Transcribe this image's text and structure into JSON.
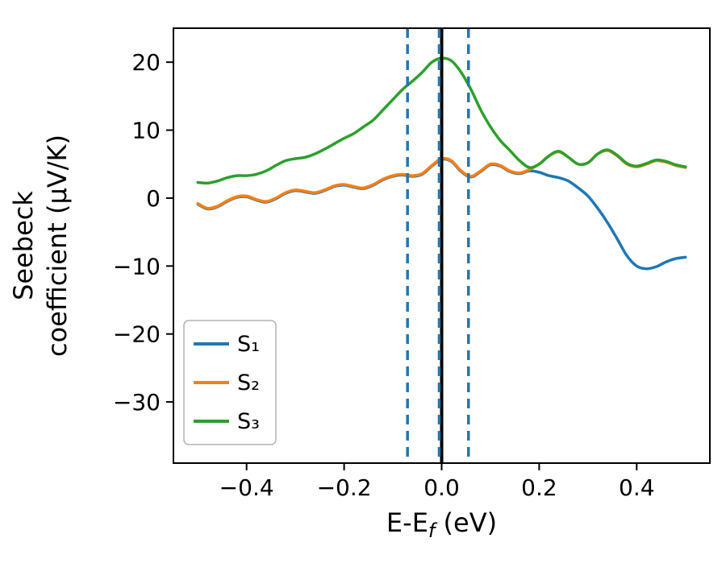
{
  "figure": {
    "background": "#ffffff",
    "axis_color": "#000000"
  },
  "chart_data": {
    "type": "line",
    "title": "",
    "xlabel_parts": {
      "pre": "E-E",
      "sub": "f",
      "post": " (eV)"
    },
    "ylabel_lines": [
      "Seebeck",
      "coefficient  (μV/K)"
    ],
    "xlim": [
      -0.55,
      0.55
    ],
    "ylim": [
      -39,
      25
    ],
    "grid": false,
    "legend_position": "lower left",
    "xticks": {
      "values": [
        -0.4,
        -0.2,
        0.0,
        0.2,
        0.4
      ],
      "labels": [
        "−0.4",
        "−0.2",
        "0.0",
        "0.2",
        "0.4"
      ]
    },
    "yticks": {
      "values": [
        -30,
        -20,
        -10,
        0,
        10,
        20
      ],
      "labels": [
        "−30",
        "−20",
        "−10",
        "0",
        "10",
        "20"
      ]
    },
    "x": [
      -0.5,
      -0.48,
      -0.46,
      -0.44,
      -0.42,
      -0.4,
      -0.38,
      -0.36,
      -0.34,
      -0.32,
      -0.3,
      -0.28,
      -0.26,
      -0.24,
      -0.22,
      -0.2,
      -0.18,
      -0.16,
      -0.14,
      -0.12,
      -0.1,
      -0.08,
      -0.06,
      -0.04,
      -0.02,
      0.0,
      0.02,
      0.04,
      0.06,
      0.08,
      0.1,
      0.12,
      0.14,
      0.16,
      0.18,
      0.2,
      0.22,
      0.24,
      0.26,
      0.28,
      0.3,
      0.32,
      0.34,
      0.36,
      0.38,
      0.4,
      0.42,
      0.44,
      0.46,
      0.48,
      0.5
    ],
    "series": [
      {
        "name": "S₁",
        "color": "#1f77b4",
        "values": [
          -0.9,
          -1.6,
          -1.3,
          -0.5,
          0.1,
          0.2,
          -0.3,
          -0.6,
          -0.1,
          0.7,
          1.1,
          0.9,
          0.7,
          1.1,
          1.7,
          1.9,
          1.6,
          1.4,
          1.9,
          2.7,
          3.2,
          3.4,
          3.2,
          3.5,
          4.7,
          5.7,
          5.4,
          3.9,
          3.1,
          3.9,
          4.9,
          4.7,
          3.9,
          3.6,
          4.0,
          3.8,
          3.3,
          3.0,
          2.5,
          1.5,
          0.3,
          -1.5,
          -3.6,
          -6.0,
          -8.5,
          -10.0,
          -10.4,
          -10.1,
          -9.4,
          -8.9,
          -8.7
        ]
      },
      {
        "name": "S₂",
        "color": "#ff7f0e",
        "values": [
          -0.8,
          -1.5,
          -1.2,
          -0.4,
          0.2,
          0.3,
          -0.2,
          -0.5,
          0.0,
          0.8,
          1.2,
          1.0,
          0.8,
          1.2,
          1.8,
          2.0,
          1.7,
          1.5,
          2.0,
          2.8,
          3.3,
          3.5,
          3.3,
          3.6,
          4.8,
          5.8,
          5.5,
          4.0,
          3.2,
          4.0,
          5.0,
          4.8,
          4.0,
          3.7,
          4.2,
          5.0,
          6.2,
          6.8,
          6.0,
          5.0,
          5.2,
          6.5,
          7.0,
          6.2,
          5.0,
          4.6,
          5.0,
          5.5,
          5.3,
          4.8,
          4.5
        ]
      },
      {
        "name": "S₃",
        "color": "#2ca02c",
        "values": [
          2.3,
          2.2,
          2.5,
          3.0,
          3.3,
          3.3,
          3.5,
          4.0,
          4.8,
          5.5,
          5.8,
          6.0,
          6.5,
          7.2,
          8.0,
          8.8,
          9.5,
          10.5,
          11.5,
          13.0,
          14.5,
          16.0,
          17.2,
          18.5,
          20.0,
          20.6,
          20.2,
          18.5,
          16.0,
          13.0,
          10.5,
          8.5,
          7.0,
          5.5,
          4.5,
          5.0,
          6.2,
          6.9,
          6.0,
          5.0,
          5.2,
          6.5,
          7.1,
          6.3,
          5.1,
          4.7,
          5.1,
          5.6,
          5.4,
          4.9,
          4.6
        ]
      }
    ],
    "vlines": [
      {
        "x": 0.0,
        "color": "#000000",
        "style": "solid",
        "width": 4
      },
      {
        "x": -0.07,
        "color": "#1f77b4",
        "style": "dashed",
        "width": 3.5
      },
      {
        "x": -0.005,
        "color": "#1f77b4",
        "style": "dashed",
        "width": 3.5
      },
      {
        "x": 0.055,
        "color": "#1f77b4",
        "style": "dashed",
        "width": 3.5
      }
    ],
    "legend": {
      "entries": [
        "S₁",
        "S₂",
        "S₃"
      ]
    }
  }
}
